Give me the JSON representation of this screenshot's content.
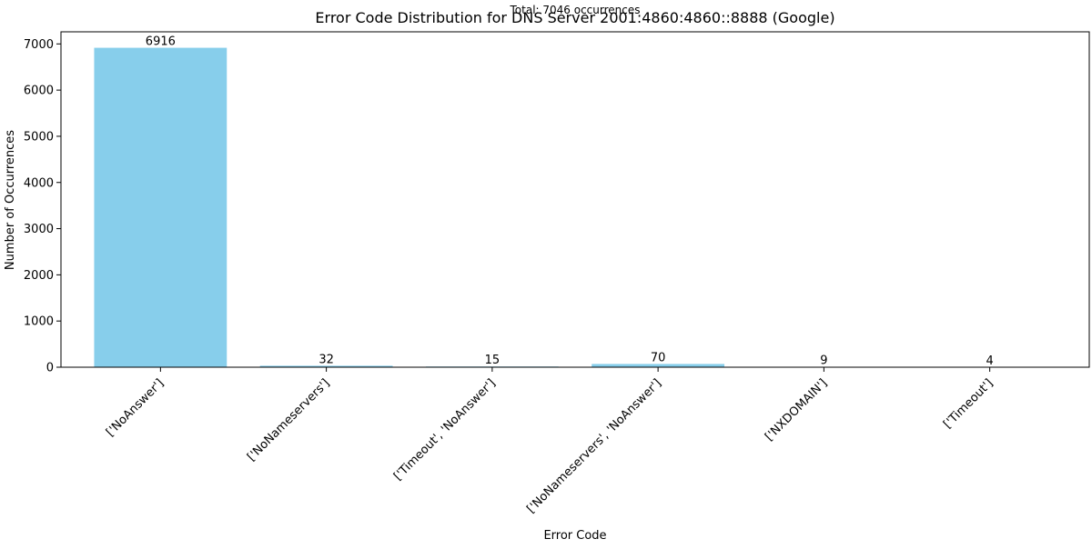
{
  "chart_data": {
    "type": "bar",
    "title": "Error Code Distribution for DNS Server 2001:4860:4860::8888 (Google)",
    "subtitle": "Total: 7046 occurrences",
    "xlabel": "Error Code",
    "ylabel": "Number of Occurrences",
    "categories": [
      "['NoAnswer']",
      "['NoNameservers']",
      "['Timeout', 'NoAnswer']",
      "['NoNameservers', 'NoAnswer']",
      "['NXDOMAIN']",
      "['Timeout']"
    ],
    "values": [
      6916,
      32,
      15,
      70,
      9,
      4
    ],
    "ylim": [
      0,
      7262
    ],
    "yticks": [
      0,
      1000,
      2000,
      3000,
      4000,
      5000,
      6000,
      7000
    ],
    "bar_color": "#87ceeb",
    "grid": false,
    "legend": "none"
  }
}
